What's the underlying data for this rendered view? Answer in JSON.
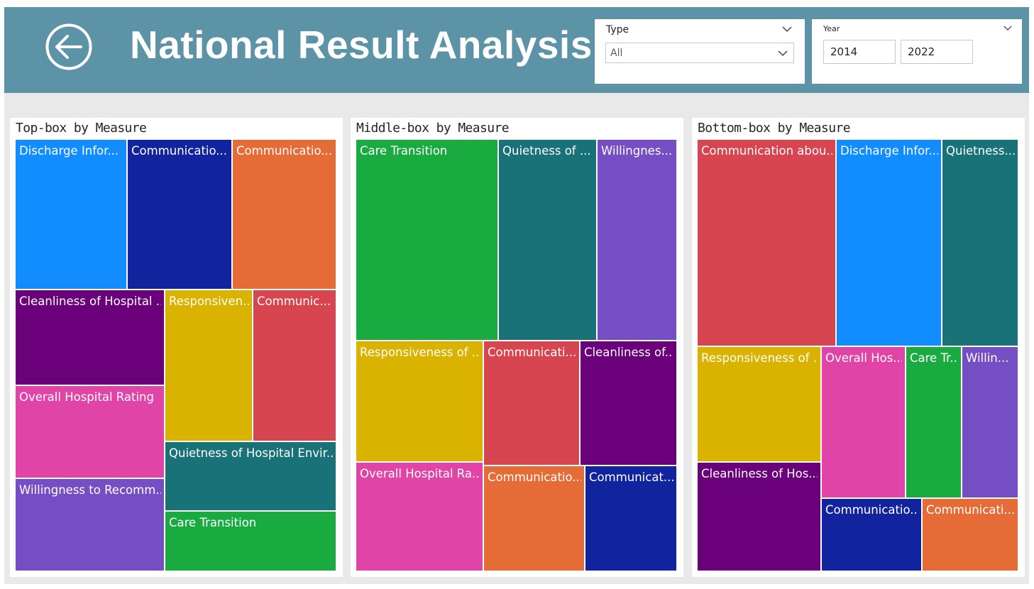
{
  "header": {
    "title": "National Result Analysis",
    "back_icon": "arrow-left-circle-icon",
    "background": "#5d93a6"
  },
  "slicers": {
    "type": {
      "label": "Type",
      "value": "All"
    },
    "year": {
      "label": "Year",
      "start": "2014",
      "end": "2022"
    }
  },
  "chart_data": [
    {
      "type": "treemap",
      "title": "Top-box by Measure",
      "tiles": [
        {
          "label": "Discharge Infor...",
          "color": "#118dff"
        },
        {
          "label": "Communicatio...",
          "color": "#12239e"
        },
        {
          "label": "Communicatio...",
          "color": "#e66c37"
        },
        {
          "label": "Cleanliness of Hospital ...",
          "color": "#6b007b"
        },
        {
          "label": "Responsiven...",
          "color": "#d9b300"
        },
        {
          "label": "Communic...",
          "color": "#d64550"
        },
        {
          "label": "Overall Hospital Rating",
          "color": "#e044a7"
        },
        {
          "label": "Quietness of Hospital Envir...",
          "color": "#197278"
        },
        {
          "label": "Willingness to Recomm...",
          "color": "#744ec2"
        },
        {
          "label": "Care Transition",
          "color": "#1aab40"
        }
      ]
    },
    {
      "type": "treemap",
      "title": "Middle-box by Measure",
      "tiles": [
        {
          "label": "Care Transition",
          "color": "#1aab40"
        },
        {
          "label": "Quietness of ...",
          "color": "#197278"
        },
        {
          "label": "Willingnes...",
          "color": "#744ec2"
        },
        {
          "label": "Responsiveness of ...",
          "color": "#d9b300"
        },
        {
          "label": "Communicati...",
          "color": "#d64550"
        },
        {
          "label": "Cleanliness of...",
          "color": "#6b007b"
        },
        {
          "label": "Overall Hospital Ra...",
          "color": "#e044a7"
        },
        {
          "label": "Communicatio...",
          "color": "#e66c37"
        },
        {
          "label": "Communicat...",
          "color": "#12239e"
        }
      ]
    },
    {
      "type": "treemap",
      "title": "Bottom-box by Measure",
      "tiles": [
        {
          "label": "Communication abou...",
          "color": "#d64550"
        },
        {
          "label": "Discharge Infor...",
          "color": "#118dff"
        },
        {
          "label": "Quietness...",
          "color": "#197278"
        },
        {
          "label": "Responsiveness of ...",
          "color": "#d9b300"
        },
        {
          "label": "Overall Hos...",
          "color": "#e044a7"
        },
        {
          "label": "Care Tr...",
          "color": "#1aab40"
        },
        {
          "label": "Willin...",
          "color": "#744ec2"
        },
        {
          "label": "Cleanliness of Hos...",
          "color": "#6b007b"
        },
        {
          "label": "Communicatio...",
          "color": "#12239e"
        },
        {
          "label": "Communicati...",
          "color": "#e66c37"
        }
      ]
    }
  ]
}
